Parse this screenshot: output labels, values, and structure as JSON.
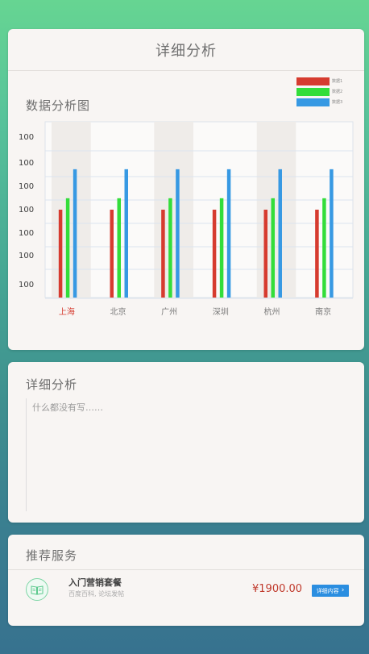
{
  "analysis_card": {
    "header_title": "详细分析",
    "chart_title": "数据分析图"
  },
  "chart_data": {
    "type": "bar",
    "categories": [
      "上海",
      "北京",
      "广州",
      "深圳",
      "杭州",
      "南京"
    ],
    "selected_category_index": 0,
    "y_tick_labels": [
      "100",
      "100",
      "100",
      "100",
      "100",
      "100",
      "100"
    ],
    "legend": [
      "数据1",
      "数据2",
      "数据3"
    ],
    "legend_position": "top-right",
    "colors": [
      "#d63b2f",
      "#33dd3a",
      "#3799e3"
    ],
    "series": [
      {
        "name": "数据1",
        "values": [
          100,
          100,
          100,
          100,
          100,
          100
        ]
      },
      {
        "name": "数据2",
        "values": [
          113,
          113,
          113,
          113,
          113,
          113
        ]
      },
      {
        "name": "数据3",
        "values": [
          146,
          146,
          146,
          146,
          146,
          146
        ]
      }
    ],
    "ylim": [
      0,
      200
    ],
    "grid": true,
    "alternating_column_background": true
  },
  "detail_card": {
    "title": "详细分析",
    "placeholder": "什么都没有写……"
  },
  "recommend_card": {
    "title": "推荐服务",
    "service": {
      "name": "入门营销套餐",
      "description": "百度百科, 论坛发帖",
      "price": "¥1900.00",
      "button_label": "详细内容",
      "icon": "book-icon"
    }
  }
}
